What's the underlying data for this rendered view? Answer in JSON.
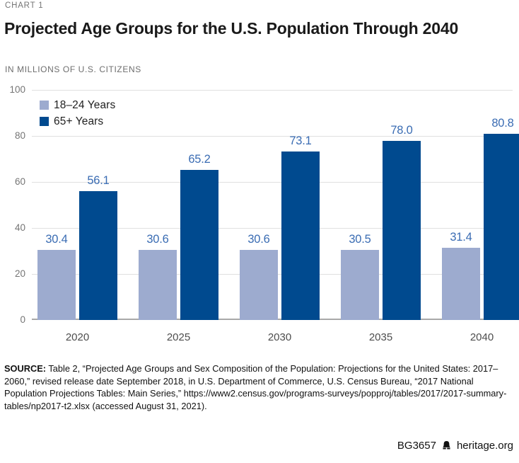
{
  "page": {
    "kicker": "CHART 1",
    "title": "Projected Age Groups for the U.S. Population Through 2040",
    "subtitle": "IN MILLIONS OF U.S. CITIZENS",
    "source_label": "SOURCE:",
    "source_text": " Table 2, “Projected Age Groups and Sex Composition of the Population: Projections for the United States: 2017–2060,” revised release date September 2018, in U.S. Department of Commerce, U.S. Census Bureau, “2017 National Population Projections Tables: Main Series,” https://www2.census.gov/programs-surveys/popproj/tables/2017/2017-summary-tables/np2017-t2.xlsx (accessed August 31, 2021).",
    "footer_id": "BG3657",
    "footer_site": "heritage.org",
    "footer_icon": "heritage-bell-icon"
  },
  "chart_data": {
    "type": "bar",
    "title": "Projected Age Groups for the U.S. Population Through 2040",
    "ylabel": "IN MILLIONS OF U.S. CITIZENS",
    "categories": [
      "2020",
      "2025",
      "2030",
      "2035",
      "2040"
    ],
    "series": [
      {
        "name": "18–24 Years",
        "color": "#9dabcf",
        "values": [
          30.4,
          30.6,
          30.6,
          30.5,
          31.4
        ]
      },
      {
        "name": "65+ Years",
        "color": "#004a8f",
        "values": [
          56.1,
          65.2,
          73.1,
          78.0,
          80.8
        ]
      }
    ],
    "ylim": [
      0,
      100
    ],
    "yticks": [
      0,
      20,
      40,
      60,
      80,
      100
    ],
    "grid": "horizontal",
    "legend_position": "top-left",
    "value_labels": true,
    "value_label_decimals": 1,
    "value_label_color": "#3a6cb3"
  },
  "colors": {
    "gridline": "#e0e0e0",
    "axis_baseline": "#a9a9a9",
    "tick_text": "#757575",
    "xtick_text": "#4d4d4d",
    "light_series": "#9dabcf",
    "dark_series": "#004a8f",
    "value_label": "#3a6cb3"
  }
}
